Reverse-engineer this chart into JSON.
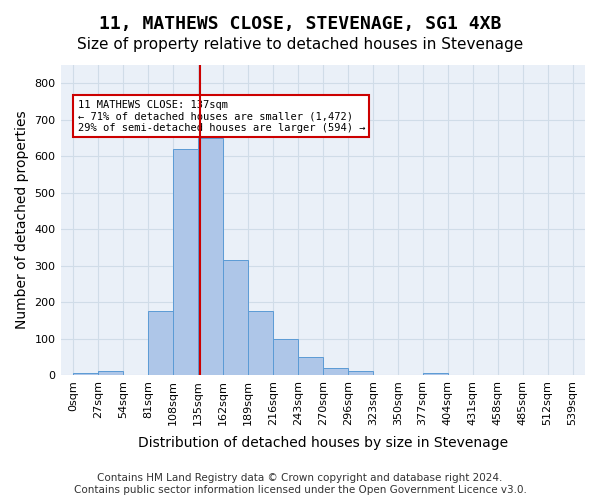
{
  "title": "11, MATHEWS CLOSE, STEVENAGE, SG1 4XB",
  "subtitle": "Size of property relative to detached houses in Stevenage",
  "xlabel": "Distribution of detached houses by size in Stevenage",
  "ylabel": "Number of detached properties",
  "footer_line1": "Contains HM Land Registry data © Crown copyright and database right 2024.",
  "footer_line2": "Contains public sector information licensed under the Open Government Licence v3.0.",
  "bin_labels": [
    "0sqm",
    "27sqm",
    "54sqm",
    "81sqm",
    "108sqm",
    "135sqm",
    "162sqm",
    "189sqm",
    "216sqm",
    "243sqm",
    "270sqm",
    "296sqm",
    "323sqm",
    "350sqm",
    "377sqm",
    "404sqm",
    "431sqm",
    "458sqm",
    "485sqm",
    "512sqm",
    "539sqm"
  ],
  "bar_values": [
    5,
    10,
    0,
    175,
    620,
    650,
    315,
    175,
    100,
    50,
    20,
    10,
    0,
    0,
    5,
    0,
    0,
    0,
    0,
    0
  ],
  "bar_color": "#aec6e8",
  "bar_edge_color": "#5b9bd5",
  "property_line_x": 137,
  "property_line_color": "#cc0000",
  "annotation_text": "11 MATHEWS CLOSE: 137sqm\n← 71% of detached houses are smaller (1,472)\n29% of semi-detached houses are larger (594) →",
  "annotation_box_color": "#ffffff",
  "annotation_box_edge_color": "#cc0000",
  "ylim": [
    0,
    850
  ],
  "yticks": [
    0,
    100,
    200,
    300,
    400,
    500,
    600,
    700,
    800
  ],
  "grid_color": "#d0dce8",
  "bg_color": "#eaf0f8",
  "title_fontsize": 13,
  "subtitle_fontsize": 11,
  "axis_label_fontsize": 10,
  "tick_fontsize": 8,
  "footer_fontsize": 7.5
}
